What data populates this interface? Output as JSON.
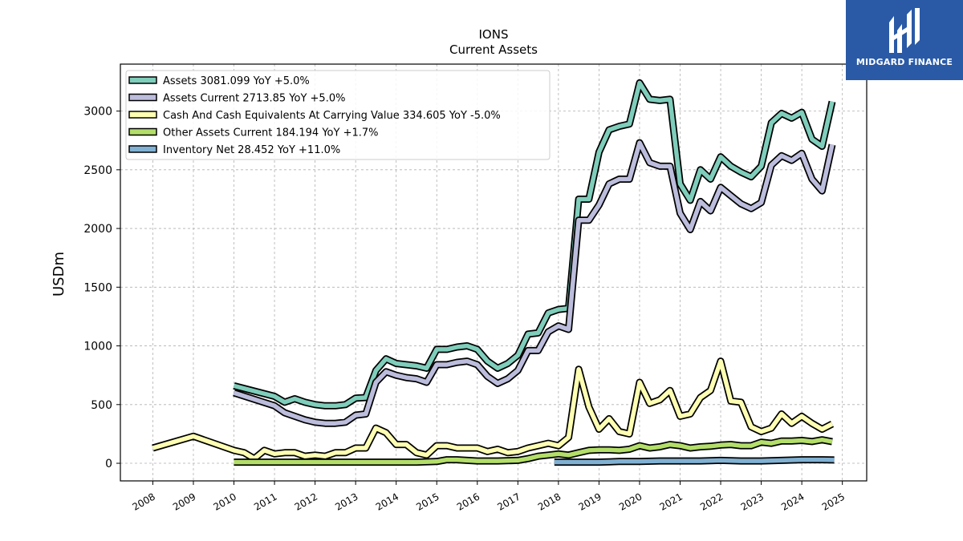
{
  "chart_data": {
    "type": "line",
    "title": "IONS",
    "subtitle": "Current  Assets",
    "ylabel": "USDm",
    "xlabel": "",
    "xlim": [
      2007.2,
      2025.6
    ],
    "ylim": [
      -150,
      3400
    ],
    "yticks": [
      0,
      500,
      1000,
      1500,
      2000,
      2500,
      3000
    ],
    "xticks": [
      "2008",
      "2009",
      "2010",
      "2011",
      "2012",
      "2013",
      "2014",
      "2015",
      "2016",
      "2017",
      "2018",
      "2019",
      "2020",
      "2021",
      "2022",
      "2023",
      "2024",
      "2025"
    ],
    "grid": true,
    "legend_position": "upper-left",
    "series": [
      {
        "name": "Assets",
        "legend": "Assets  3081.099 YoY +5.0%",
        "color": "#7fcdbb",
        "x": [
          2010.0,
          2011.0,
          2011.25,
          2011.5,
          2011.75,
          2012.0,
          2012.25,
          2012.5,
          2012.75,
          2013.0,
          2013.25,
          2013.5,
          2013.75,
          2014.0,
          2014.25,
          2014.5,
          2014.75,
          2015.0,
          2015.25,
          2015.5,
          2015.75,
          2016.0,
          2016.25,
          2016.5,
          2016.75,
          2017.0,
          2017.25,
          2017.5,
          2017.75,
          2018.0,
          2018.25,
          2018.5,
          2018.75,
          2019.0,
          2019.25,
          2019.5,
          2019.75,
          2020.0,
          2020.25,
          2020.5,
          2020.75,
          2021.0,
          2021.25,
          2021.5,
          2021.75,
          2022.0,
          2022.25,
          2022.5,
          2022.75,
          2023.0,
          2023.25,
          2023.5,
          2023.75,
          2024.0,
          2024.25,
          2024.5,
          2024.75
        ],
        "y": [
          660,
          570,
          520,
          550,
          520,
          500,
          490,
          490,
          500,
          555,
          560,
          790,
          890,
          850,
          840,
          830,
          810,
          970,
          970,
          990,
          1000,
          970,
          870,
          810,
          850,
          920,
          1100,
          1110,
          1280,
          1310,
          1320,
          2250,
          2250,
          2650,
          2840,
          2870,
          2890,
          3240,
          3100,
          3090,
          3100,
          2380,
          2240,
          2500,
          2420,
          2610,
          2530,
          2480,
          2440,
          2530,
          2900,
          2980,
          2940,
          2990,
          2760,
          2700,
          3081
        ]
      },
      {
        "name": "Assets Current",
        "legend": "Assets Current  2713.85 YoY +5.0%",
        "color": "#bcbddc",
        "x": [
          2010.0,
          2011.0,
          2011.25,
          2011.5,
          2011.75,
          2012.0,
          2012.25,
          2012.5,
          2012.75,
          2013.0,
          2013.25,
          2013.5,
          2013.75,
          2014.0,
          2014.25,
          2014.5,
          2014.75,
          2015.0,
          2015.25,
          2015.5,
          2015.75,
          2016.0,
          2016.25,
          2016.5,
          2016.75,
          2017.0,
          2017.25,
          2017.5,
          2017.75,
          2018.0,
          2018.25,
          2018.5,
          2018.75,
          2019.0,
          2019.25,
          2019.5,
          2019.75,
          2020.0,
          2020.25,
          2020.5,
          2020.75,
          2021.0,
          2021.25,
          2021.5,
          2021.75,
          2022.0,
          2022.25,
          2022.5,
          2022.75,
          2023.0,
          2023.25,
          2023.5,
          2023.75,
          2024.0,
          2024.25,
          2024.5,
          2024.75
        ],
        "y": [
          600,
          490,
          430,
          400,
          370,
          350,
          340,
          340,
          350,
          410,
          420,
          690,
          780,
          750,
          730,
          720,
          690,
          840,
          840,
          860,
          870,
          840,
          740,
          680,
          720,
          790,
          960,
          960,
          1120,
          1170,
          1140,
          2070,
          2070,
          2200,
          2380,
          2420,
          2420,
          2730,
          2560,
          2530,
          2530,
          2130,
          1990,
          2230,
          2150,
          2350,
          2280,
          2210,
          2170,
          2220,
          2540,
          2620,
          2580,
          2640,
          2420,
          2320,
          2714
        ]
      },
      {
        "name": "Cash And Cash Equivalents At Carrying Value",
        "legend": "Cash And Cash Equivalents At Carrying Value  334.605 YoY -5.0%",
        "color": "#ffffb3",
        "x": [
          2008.0,
          2009.0,
          2010.0,
          2010.25,
          2010.5,
          2010.75,
          2011.0,
          2011.25,
          2011.5,
          2011.75,
          2012.0,
          2012.25,
          2012.5,
          2012.75,
          2013.0,
          2013.25,
          2013.5,
          2013.75,
          2014.0,
          2014.25,
          2014.5,
          2014.75,
          2015.0,
          2015.25,
          2015.5,
          2015.75,
          2016.0,
          2016.25,
          2016.5,
          2016.75,
          2017.0,
          2017.25,
          2017.5,
          2017.75,
          2018.0,
          2018.25,
          2018.5,
          2018.75,
          2019.0,
          2019.25,
          2019.5,
          2019.75,
          2020.0,
          2020.25,
          2020.5,
          2020.75,
          2021.0,
          2021.25,
          2021.5,
          2021.75,
          2022.0,
          2022.25,
          2022.5,
          2022.75,
          2023.0,
          2023.25,
          2023.5,
          2023.75,
          2024.0,
          2024.25,
          2024.5,
          2024.75
        ],
        "y": [
          130,
          230,
          110,
          90,
          40,
          110,
          80,
          90,
          90,
          60,
          70,
          60,
          90,
          90,
          130,
          130,
          300,
          260,
          160,
          160,
          90,
          70,
          150,
          150,
          130,
          130,
          130,
          100,
          120,
          90,
          100,
          130,
          150,
          170,
          150,
          220,
          800,
          480,
          290,
          380,
          270,
          250,
          690,
          510,
          540,
          620,
          400,
          420,
          560,
          620,
          870,
          530,
          520,
          310,
          270,
          300,
          420,
          340,
          400,
          340,
          290,
          335
        ]
      },
      {
        "name": "Other Assets Current",
        "legend": "Other Assets Current  184.194 YoY +1.7%",
        "color": "#b3de69",
        "x": [
          2010.0,
          2011.0,
          2012.0,
          2013.0,
          2014.0,
          2014.5,
          2015.0,
          2015.25,
          2015.5,
          2015.75,
          2016.0,
          2016.5,
          2017.0,
          2017.25,
          2017.5,
          2017.75,
          2018.0,
          2018.25,
          2018.5,
          2018.75,
          2019.0,
          2019.25,
          2019.5,
          2019.75,
          2020.0,
          2020.25,
          2020.5,
          2020.75,
          2021.0,
          2021.25,
          2021.5,
          2021.75,
          2022.0,
          2022.25,
          2022.5,
          2022.75,
          2023.0,
          2023.25,
          2023.5,
          2023.75,
          2024.0,
          2024.25,
          2024.5,
          2024.75
        ],
        "y": [
          10,
          10,
          10,
          10,
          10,
          10,
          15,
          30,
          30,
          25,
          20,
          20,
          25,
          40,
          60,
          70,
          80,
          70,
          90,
          110,
          115,
          115,
          110,
          120,
          150,
          130,
          140,
          160,
          150,
          130,
          140,
          145,
          155,
          160,
          150,
          150,
          180,
          170,
          190,
          190,
          195,
          185,
          200,
          184
        ]
      },
      {
        "name": "Inventory Net",
        "legend": "Inventory Net  28.452 YoY +11.0%",
        "color": "#80b1d3",
        "x": [
          2017.9,
          2018.5,
          2019.0,
          2019.5,
          2020.0,
          2020.5,
          2021.0,
          2021.5,
          2022.0,
          2022.5,
          2023.0,
          2023.5,
          2024.0,
          2024.5,
          2024.8
        ],
        "y": [
          10,
          10,
          10,
          15,
          15,
          20,
          20,
          20,
          25,
          20,
          20,
          25,
          30,
          30,
          28
        ]
      }
    ]
  },
  "logo": {
    "text": "MIDGARD FINANCE",
    "background": "#2a5aa6"
  }
}
